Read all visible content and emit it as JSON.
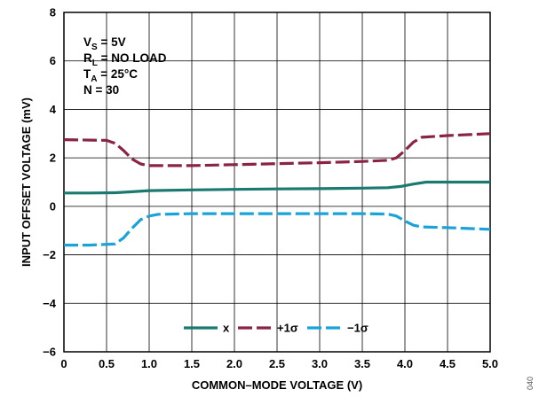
{
  "chart_data": {
    "type": "line",
    "xlabel": "COMMON–MODE VOLTAGE (V)",
    "ylabel": "INPUT OFFSET VOLTAGE (mV)",
    "xlim": [
      0,
      5.0
    ],
    "ylim": [
      -6,
      8
    ],
    "x_ticks": [
      "0",
      "0.5",
      "1.0",
      "1.5",
      "2.0",
      "2.5",
      "3.0",
      "3.5",
      "4.0",
      "4.5",
      "5.0"
    ],
    "y_ticks": [
      "8",
      "6",
      "4",
      "2",
      "0",
      "−2",
      "−4",
      "−6"
    ],
    "grid": true,
    "legend_position": "bottom-center",
    "conditions": [
      {
        "main": "V",
        "sub": "S",
        "rest": " = 5V"
      },
      {
        "main": "R",
        "sub": "L",
        "rest": " = NO LOAD"
      },
      {
        "main": "T",
        "sub": "A",
        "rest": " = 25°C"
      },
      {
        "main": "N = 30",
        "sub": "",
        "rest": ""
      }
    ],
    "series": [
      {
        "name": "x",
        "color": "#1a7a70",
        "dash": "solid",
        "x": [
          0,
          0.3,
          0.6,
          0.8,
          1.0,
          1.5,
          2.0,
          2.5,
          3.0,
          3.5,
          3.8,
          3.95,
          4.1,
          4.25,
          4.5,
          5.0
        ],
        "y": [
          0.55,
          0.55,
          0.56,
          0.6,
          0.65,
          0.68,
          0.7,
          0.72,
          0.73,
          0.75,
          0.77,
          0.82,
          0.92,
          1.0,
          1.0,
          1.0
        ]
      },
      {
        "name": "+1σ",
        "color": "#8b2347",
        "dash": "dash",
        "x": [
          0,
          0.5,
          0.6,
          0.7,
          0.8,
          0.9,
          1.0,
          1.5,
          2.0,
          2.5,
          3.0,
          3.5,
          3.8,
          3.9,
          4.0,
          4.1,
          4.2,
          4.5,
          5.0
        ],
        "y": [
          2.75,
          2.72,
          2.6,
          2.3,
          1.95,
          1.75,
          1.68,
          1.68,
          1.72,
          1.76,
          1.8,
          1.85,
          1.9,
          2.0,
          2.3,
          2.65,
          2.85,
          2.92,
          3.0
        ]
      },
      {
        "name": "−1σ",
        "color": "#1aa3d9",
        "dash": "dash",
        "x": [
          0,
          0.3,
          0.6,
          0.7,
          0.8,
          0.9,
          1.0,
          1.1,
          1.5,
          2.0,
          2.5,
          3.0,
          3.5,
          3.8,
          3.9,
          4.0,
          4.1,
          4.2,
          4.5,
          5.0
        ],
        "y": [
          -1.6,
          -1.6,
          -1.55,
          -1.3,
          -0.9,
          -0.55,
          -0.4,
          -0.33,
          -0.3,
          -0.3,
          -0.3,
          -0.3,
          -0.3,
          -0.32,
          -0.4,
          -0.6,
          -0.78,
          -0.85,
          -0.88,
          -0.95
        ]
      }
    ],
    "figure_id": "040"
  }
}
